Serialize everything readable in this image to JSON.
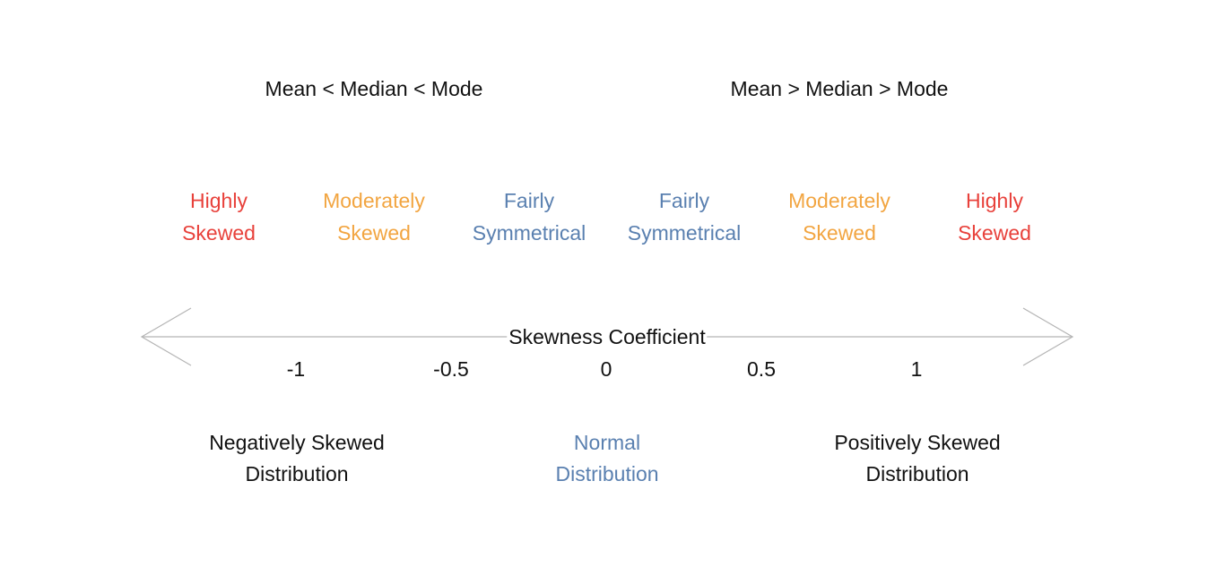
{
  "colors": {
    "red": "#e8413b",
    "orange": "#f2a541",
    "blue": "#5a80b0",
    "black": "#111111",
    "axis": "#b5b5b5"
  },
  "top": {
    "left_relation": "Mean < Median < Mode",
    "right_relation": "Mean > Median > Mode"
  },
  "categories": [
    {
      "line1": "Highly",
      "line2": "Skewed",
      "color": "red"
    },
    {
      "line1": "Moderately",
      "line2": "Skewed",
      "color": "orange"
    },
    {
      "line1": "Fairly",
      "line2": "Symmetrical",
      "color": "blue"
    },
    {
      "line1": "Fairly",
      "line2": "Symmetrical",
      "color": "blue"
    },
    {
      "line1": "Moderately",
      "line2": "Skewed",
      "color": "orange"
    },
    {
      "line1": "Highly",
      "line2": "Skewed",
      "color": "red"
    }
  ],
  "axis": {
    "label": "Skewness Coefficient",
    "ticks": [
      "-1",
      "-0.5",
      "0",
      "0.5",
      "1"
    ]
  },
  "bottom": [
    {
      "line1": "Negatively Skewed",
      "line2": "Distribution",
      "color": "black"
    },
    {
      "line1": "Normal",
      "line2": "Distribution",
      "color": "blue"
    },
    {
      "line1": "Positively Skewed",
      "line2": "Distribution",
      "color": "black"
    }
  ]
}
